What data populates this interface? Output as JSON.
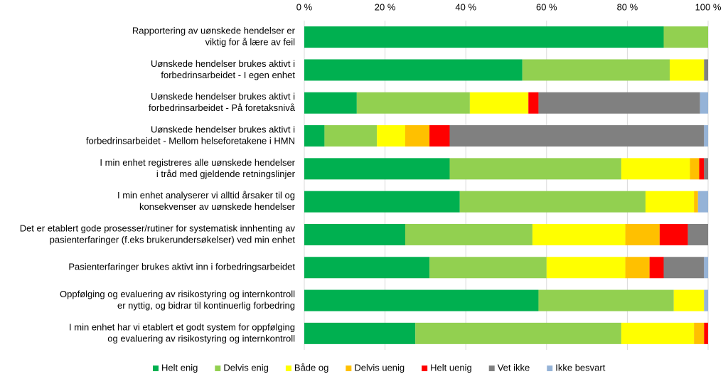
{
  "chart_data": {
    "type": "stacked-barh",
    "categories": [
      [
        "Rapportering av uønskede hendelser er",
        "viktig for å lære av feil"
      ],
      [
        "Uønskede hendelser brukes aktivt i",
        "forbedrinsarbeidet - I egen enhet"
      ],
      [
        "Uønskede hendelser brukes aktivt i",
        "forbedrinsarbeidet - På foretaksnivå"
      ],
      [
        "Uønskede hendelser brukes aktivt i",
        "forbedrinsarbeidet - Mellom helseforetakene i HMN"
      ],
      [
        "I min enhet registreres alle uønskede hendelser",
        "i tråd med gjeldende retningslinjer"
      ],
      [
        "I min enhet analyserer vi alltid årsaker til og",
        "konsekvenser av uønskede hendelser"
      ],
      [
        "Det er etablert gode prosesser/rutiner for systematisk innhenting av",
        "pasienterfaringer (f.eks brukerundersøkelser) ved min enhet"
      ],
      [
        "Pasienterfaringer brukes aktivt inn i forbedringsarbeidet"
      ],
      [
        "Oppfølging og evaluering av risikostyring og internkontroll",
        "er nyttig, og bidrar til kontinuerlig forbedring"
      ],
      [
        "I min enhet har vi etablert et godt system for oppfølging",
        "og evaluering av risikostyring og internkontroll"
      ]
    ],
    "series": [
      {
        "name": "Helt enig",
        "color": "#00b050",
        "values": [
          89,
          54,
          13,
          5,
          36,
          38.5,
          25,
          31,
          58,
          27.5
        ]
      },
      {
        "name": "Delvis enig",
        "color": "#92d050",
        "values": [
          11,
          36.5,
          28,
          13,
          42.5,
          46,
          31.5,
          29,
          33.5,
          51
        ]
      },
      {
        "name": "Både og",
        "color": "#ffff00",
        "values": [
          0,
          8.5,
          14.5,
          7,
          17,
          12,
          23,
          19.5,
          7.5,
          18
        ]
      },
      {
        "name": "Delvis uenig",
        "color": "#ffc000",
        "values": [
          0,
          0,
          0,
          6,
          2.3,
          1,
          8.5,
          6,
          0,
          2.5
        ]
      },
      {
        "name": "Helt uenig",
        "color": "#ff0000",
        "values": [
          0,
          0,
          2.5,
          5,
          1.2,
          0,
          7,
          3.5,
          0,
          1
        ]
      },
      {
        "name": "Vet ikke",
        "color": "#808080",
        "values": [
          0,
          1,
          40,
          63,
          1,
          0,
          5,
          10,
          0,
          0
        ]
      },
      {
        "name": "Ikke besvart",
        "color": "#95b3d7",
        "values": [
          0,
          0,
          2,
          1,
          0,
          2.5,
          0,
          1,
          1,
          0
        ]
      }
    ],
    "xlim": [
      0,
      100
    ],
    "xticks": [
      {
        "value": 0,
        "label": "0 %"
      },
      {
        "value": 20,
        "label": "20 %"
      },
      {
        "value": 40,
        "label": "40 %"
      },
      {
        "value": 60,
        "label": "60 %"
      },
      {
        "value": 80,
        "label": "80 %"
      },
      {
        "value": 100,
        "label": "100 %"
      }
    ],
    "grid": true,
    "legend": "bottom"
  }
}
